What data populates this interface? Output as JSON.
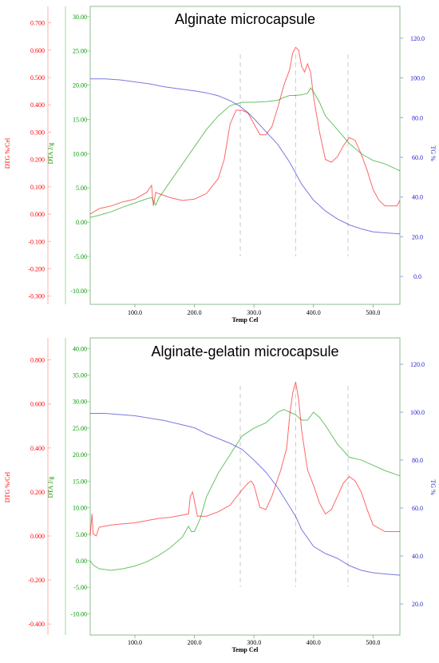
{
  "colors": {
    "dtg": "#ff0000",
    "dta": "#009900",
    "tg": "#2222cc",
    "frame": "#8fbc8f",
    "guide": "#cccccc"
  },
  "chart_data": [
    {
      "type": "line",
      "title": "Alginate microcapsule",
      "xlabel": "Temp Cel",
      "xlim": [
        25,
        545
      ],
      "xticks": [
        "100.0",
        "200.0",
        "300.0",
        "400.0",
        "500.0"
      ],
      "xtick_values": [
        100,
        200,
        300,
        400,
        500
      ],
      "guide_lines_x": [
        277,
        370,
        458
      ],
      "axes": {
        "dtg": {
          "label": "DTG %/Cel",
          "lim": [
            -0.33,
            0.76
          ],
          "ticks": [
            "0.700",
            "0.600",
            "0.500",
            "0.400",
            "0.300",
            "0.200",
            "0.100",
            "0.000",
            "-0.100",
            "-0.200",
            "-0.300"
          ],
          "tick_values": [
            0.7,
            0.6,
            0.5,
            0.4,
            0.3,
            0.2,
            0.1,
            0.0,
            -0.1,
            -0.2,
            -0.3
          ]
        },
        "dta": {
          "label": "DTA J/g",
          "lim": [
            -12,
            31.5
          ],
          "ticks": [
            "30.00",
            "25.00",
            "20.00",
            "15.00",
            "10.00",
            "5.00",
            "0.00",
            "-5.00",
            "-10.00"
          ],
          "tick_values": [
            30,
            25,
            20,
            15,
            10,
            5,
            0,
            -5,
            -10
          ]
        },
        "tg": {
          "label": "TG %",
          "lim": [
            -14,
            136
          ],
          "ticks": [
            "120.0",
            "100.0",
            "80.0",
            "60.0",
            "40.0",
            "20.0",
            "0.0"
          ],
          "tick_values": [
            120,
            100,
            80,
            60,
            40,
            20,
            0
          ]
        }
      },
      "series": [
        {
          "axis": "dtg",
          "color": "#ff0000",
          "x": [
            25,
            40,
            60,
            80,
            100,
            120,
            128,
            131,
            135,
            140,
            160,
            180,
            200,
            220,
            240,
            250,
            260,
            270,
            280,
            290,
            300,
            310,
            320,
            330,
            340,
            350,
            360,
            365,
            370,
            375,
            380,
            385,
            390,
            395,
            400,
            410,
            420,
            430,
            440,
            450,
            460,
            470,
            480,
            490,
            500,
            510,
            520,
            530,
            540,
            545
          ],
          "y": [
            0.0,
            0.02,
            0.03,
            0.045,
            0.055,
            0.08,
            0.105,
            0.03,
            0.08,
            0.075,
            0.06,
            0.05,
            0.055,
            0.075,
            0.13,
            0.2,
            0.33,
            0.38,
            0.38,
            0.37,
            0.33,
            0.29,
            0.29,
            0.32,
            0.39,
            0.47,
            0.53,
            0.59,
            0.61,
            0.6,
            0.54,
            0.52,
            0.55,
            0.52,
            0.43,
            0.3,
            0.2,
            0.19,
            0.21,
            0.25,
            0.28,
            0.27,
            0.22,
            0.16,
            0.09,
            0.05,
            0.03,
            0.03,
            0.03,
            0.05
          ]
        },
        {
          "axis": "dta",
          "color": "#009900",
          "x": [
            25,
            40,
            60,
            80,
            100,
            120,
            128,
            135,
            140,
            160,
            180,
            200,
            220,
            240,
            260,
            280,
            300,
            320,
            340,
            350,
            360,
            370,
            380,
            390,
            395,
            400,
            410,
            420,
            440,
            460,
            480,
            500,
            520,
            545
          ],
          "y": [
            0.7,
            1.0,
            1.5,
            2.2,
            2.8,
            3.4,
            3.6,
            2.5,
            3.5,
            6.0,
            8.5,
            11.0,
            13.5,
            15.5,
            17.0,
            17.5,
            17.5,
            17.6,
            17.8,
            18.2,
            18.5,
            18.5,
            18.6,
            18.8,
            19.6,
            19.0,
            17.5,
            15.5,
            13.5,
            11.5,
            10.0,
            9.0,
            8.5,
            7.5
          ]
        },
        {
          "axis": "tg",
          "color": "#2222cc",
          "x": [
            25,
            50,
            75,
            100,
            125,
            150,
            175,
            200,
            220,
            240,
            260,
            275,
            290,
            300,
            320,
            340,
            360,
            380,
            400,
            420,
            440,
            460,
            480,
            500,
            520,
            545
          ],
          "y": [
            99.5,
            99.5,
            99.0,
            98.0,
            97.0,
            95.5,
            94.5,
            93.5,
            92.5,
            91.0,
            88.5,
            86.0,
            82.5,
            79.5,
            73.0,
            66.5,
            57.5,
            46.5,
            38.5,
            33.0,
            29.0,
            26.0,
            24.0,
            22.5,
            22.0,
            21.5
          ]
        }
      ]
    },
    {
      "type": "line",
      "title": "Alginate-gelatin microcapsule",
      "xlabel": "Temp Cel",
      "xlim": [
        25,
        545
      ],
      "xticks": [
        "100.0",
        "200.0",
        "300.0",
        "400.0",
        "500.0"
      ],
      "xtick_values": [
        100,
        200,
        300,
        400,
        500
      ],
      "guide_lines_x": [
        277,
        370,
        458
      ],
      "axes": {
        "dtg": {
          "label": "DTG %/Cel",
          "lim": [
            -0.45,
            0.9
          ],
          "ticks": [
            "0.800",
            "0.600",
            "0.400",
            "0.200",
            "0.000",
            "-0.200",
            "-0.400"
          ],
          "tick_values": [
            0.8,
            0.6,
            0.4,
            0.2,
            0.0,
            -0.2,
            -0.4
          ]
        },
        "dta": {
          "label": "DTA J/g",
          "lim": [
            -14,
            42
          ],
          "ticks": [
            "40.00",
            "35.00",
            "30.00",
            "25.00",
            "20.00",
            "15.00",
            "10.00",
            "5.00",
            "0.00",
            "-5.00",
            "-10.00"
          ],
          "tick_values": [
            40,
            35,
            30,
            25,
            20,
            15,
            10,
            5,
            0,
            -5,
            -10
          ]
        },
        "tg": {
          "label": "TG %",
          "lim": [
            7,
            131
          ],
          "ticks": [
            "120.0",
            "100.0",
            "80.0",
            "60.0",
            "40.0",
            "20.0"
          ],
          "tick_values": [
            120,
            100,
            80,
            60,
            40,
            20
          ]
        }
      },
      "series": [
        {
          "axis": "dtg",
          "color": "#ff0000",
          "x": [
            25,
            28,
            30,
            35,
            40,
            60,
            80,
            100,
            120,
            140,
            160,
            180,
            190,
            193,
            197,
            200,
            205,
            220,
            240,
            260,
            280,
            290,
            295,
            300,
            305,
            310,
            320,
            330,
            340,
            345,
            350,
            355,
            360,
            365,
            370,
            375,
            380,
            390,
            400,
            410,
            420,
            430,
            440,
            450,
            460,
            470,
            480,
            490,
            500,
            520,
            545
          ],
          "y": [
            0.0,
            0.1,
            0.01,
            0.0,
            0.04,
            0.05,
            0.055,
            0.06,
            0.07,
            0.08,
            0.085,
            0.095,
            0.1,
            0.18,
            0.2,
            0.16,
            0.09,
            0.09,
            0.11,
            0.14,
            0.21,
            0.24,
            0.25,
            0.23,
            0.18,
            0.13,
            0.12,
            0.18,
            0.26,
            0.3,
            0.35,
            0.4,
            0.55,
            0.65,
            0.7,
            0.62,
            0.48,
            0.3,
            0.23,
            0.15,
            0.1,
            0.12,
            0.18,
            0.24,
            0.27,
            0.25,
            0.2,
            0.12,
            0.05,
            0.02,
            0.02
          ]
        },
        {
          "axis": "dta",
          "color": "#009900",
          "x": [
            25,
            30,
            40,
            60,
            80,
            100,
            120,
            140,
            160,
            180,
            190,
            195,
            200,
            210,
            220,
            240,
            260,
            280,
            300,
            320,
            330,
            340,
            350,
            360,
            370,
            380,
            390,
            400,
            410,
            420,
            440,
            460,
            480,
            500,
            520,
            545
          ],
          "y": [
            0.0,
            -0.8,
            -1.5,
            -1.8,
            -1.5,
            -1.0,
            -0.2,
            1.0,
            2.5,
            4.5,
            6.5,
            5.5,
            5.5,
            8.0,
            12.0,
            16.5,
            20.0,
            23.5,
            25.0,
            26.0,
            27.0,
            28.0,
            28.5,
            28.0,
            27.5,
            26.5,
            26.5,
            28.0,
            27.0,
            25.5,
            22.0,
            19.5,
            19.0,
            18.0,
            17.0,
            16.0
          ]
        },
        {
          "axis": "tg",
          "color": "#2222cc",
          "x": [
            25,
            50,
            75,
            100,
            125,
            150,
            175,
            200,
            220,
            240,
            260,
            280,
            300,
            320,
            340,
            360,
            370,
            380,
            400,
            420,
            440,
            460,
            480,
            500,
            520,
            545
          ],
          "y": [
            99.5,
            99.5,
            99.0,
            98.5,
            97.5,
            96.5,
            95.0,
            93.5,
            91.0,
            89.0,
            87.0,
            84.5,
            80.0,
            75.0,
            68.5,
            60.5,
            56.5,
            51.0,
            44.0,
            41.0,
            39.0,
            36.0,
            34.0,
            33.0,
            32.5,
            32.0
          ]
        }
      ]
    }
  ]
}
